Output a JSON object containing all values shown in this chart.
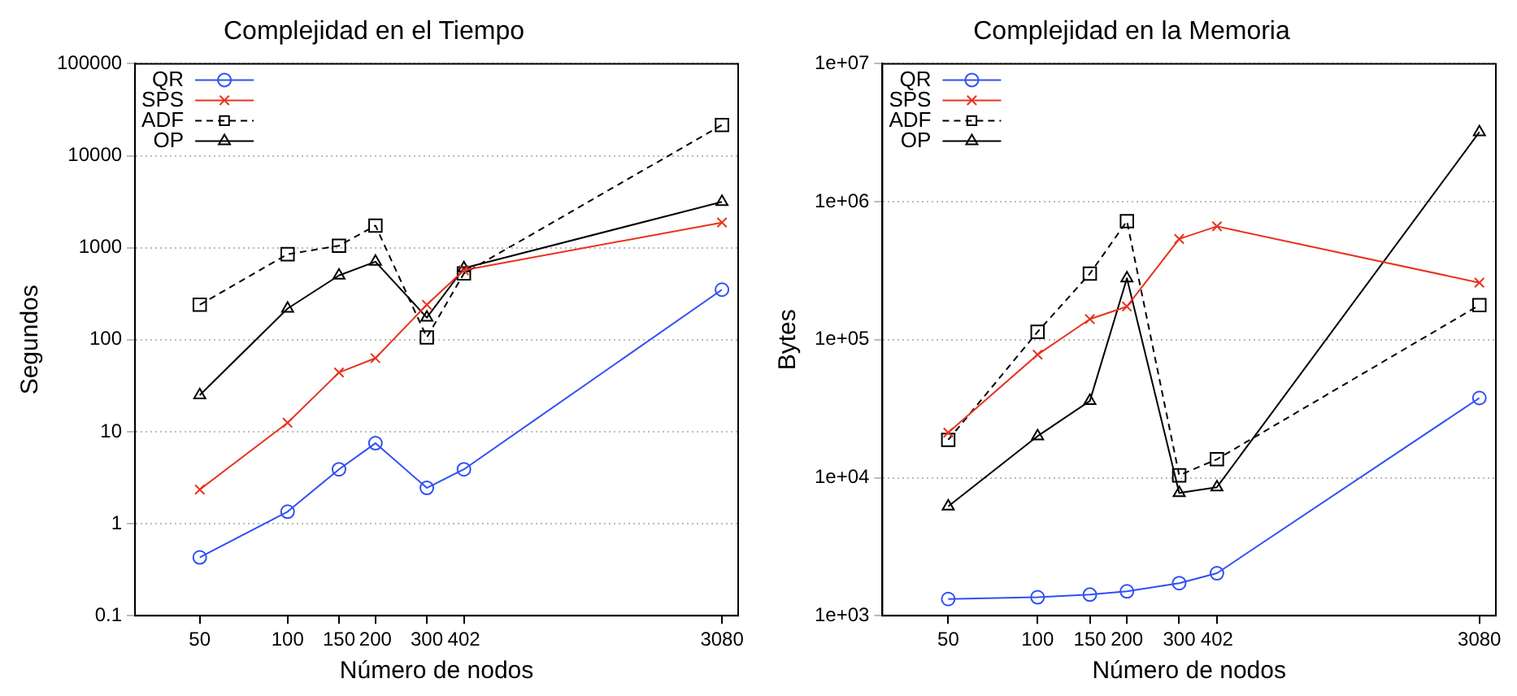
{
  "chart_data": [
    {
      "type": "line",
      "title": "Complejidad en el Tiempo",
      "xlabel": "Número de nodos",
      "ylabel": "Segundos",
      "x": [
        50,
        100,
        150,
        200,
        300,
        402,
        3080
      ],
      "series": [
        {
          "name": "QR",
          "color": "#2f4ff5",
          "marker": "circle",
          "line_style": "solid",
          "values": [
            0.43,
            1.35,
            3.9,
            7.5,
            2.45,
            3.9,
            350
          ]
        },
        {
          "name": "SPS",
          "color": "#e8321e",
          "marker": "cross",
          "line_style": "solid",
          "values": [
            2.35,
            12.5,
            44,
            63,
            240,
            570,
            1880
          ]
        },
        {
          "name": "ADF",
          "color": "#000000",
          "marker": "square",
          "line_style": "dashed",
          "values": [
            240,
            850,
            1050,
            1740,
            106,
            525,
            21600
          ]
        },
        {
          "name": "OP",
          "color": "#000000",
          "marker": "triangle",
          "line_style": "solid",
          "values": [
            25,
            218,
            500,
            705,
            174,
            600,
            3150
          ]
        }
      ],
      "xlim": [
        30,
        3500
      ],
      "ylim": [
        0.1,
        100000
      ],
      "xticks": [
        50,
        100,
        150,
        200,
        300,
        402,
        3080
      ],
      "yticks": [
        0.1,
        1,
        10,
        100,
        1000,
        10000,
        100000
      ],
      "log": "xy",
      "grid": "y",
      "legend": "top left"
    },
    {
      "type": "line",
      "title": "Complejidad en la Memoria",
      "xlabel": "Número de nodos",
      "ylabel": "Bytes",
      "x": [
        50,
        100,
        150,
        200,
        300,
        402,
        3080
      ],
      "series": [
        {
          "name": "QR",
          "color": "#2f4ff5",
          "marker": "circle",
          "line_style": "solid",
          "values": [
            1320,
            1360,
            1420,
            1500,
            1720,
            2030,
            37800
          ]
        },
        {
          "name": "SPS",
          "color": "#e8321e",
          "marker": "cross",
          "line_style": "solid",
          "values": [
            21200,
            78000,
            141000,
            174000,
            537000,
            663000,
            259000
          ]
        },
        {
          "name": "ADF",
          "color": "#000000",
          "marker": "square",
          "line_style": "dashed",
          "values": [
            18800,
            114000,
            301000,
            723000,
            10400,
            13600,
            178000
          ]
        },
        {
          "name": "OP",
          "color": "#000000",
          "marker": "triangle",
          "line_style": "solid",
          "values": [
            6200,
            20000,
            36000,
            279000,
            7750,
            8530,
            3200000
          ]
        }
      ],
      "xlim": [
        30,
        3500
      ],
      "ylim": [
        1000,
        10000000
      ],
      "xticks": [
        50,
        100,
        150,
        200,
        300,
        402,
        3080
      ],
      "yticks": [
        {
          "value": 1000,
          "label": "1e+03"
        },
        {
          "value": 10000,
          "label": "1e+04"
        },
        {
          "value": 100000,
          "label": "1e+05"
        },
        {
          "value": 1000000,
          "label": "1e+06"
        },
        {
          "value": 10000000,
          "label": "1e+07"
        }
      ],
      "log": "xy",
      "grid": "y",
      "legend": "top left"
    }
  ]
}
